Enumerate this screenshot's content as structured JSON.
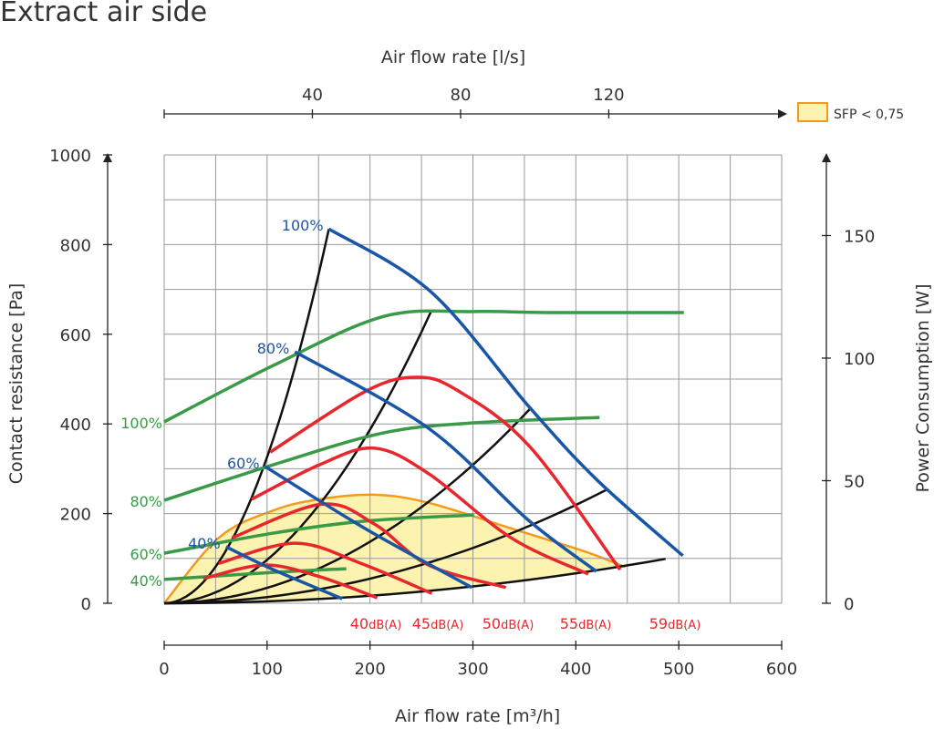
{
  "title": "Extract air side",
  "legend": {
    "label": "SFP < 0,75",
    "fill": "#fdf3b0",
    "stroke": "#f39a1e"
  },
  "chart_data": {
    "type": "line",
    "title": "Extract air side",
    "xlabel": "Air flow rate [m³/h]",
    "x2label": "Air flow rate [l/s]",
    "ylabel": "Contact resistance [Pa]",
    "y2label": "Power Consumption [W]",
    "xlim": [
      0,
      600
    ],
    "ylim": [
      0,
      1000
    ],
    "y2lim": [
      0,
      183
    ],
    "xticks": [
      0,
      100,
      200,
      300,
      400,
      500,
      600
    ],
    "yticks": [
      0,
      200,
      400,
      600,
      800,
      1000
    ],
    "y2ticks": [
      0,
      50,
      100,
      150
    ],
    "x2ticks": [
      40,
      80,
      120
    ],
    "grid": true,
    "fan_curves": [
      {
        "name": "100%",
        "color": "#1a56a8",
        "points": [
          [
            160,
            835
          ],
          [
            259,
            695
          ],
          [
            355,
            437
          ],
          [
            421,
            274
          ],
          [
            504,
            106
          ]
        ]
      },
      {
        "name": "80%",
        "color": "#1a56a8",
        "points": [
          [
            127,
            561
          ],
          [
            257,
            390
          ],
          [
            353,
            187
          ],
          [
            420,
            71
          ]
        ]
      },
      {
        "name": "60%",
        "color": "#1a56a8",
        "points": [
          [
            98,
            305
          ],
          [
            195,
            167
          ],
          [
            299,
            35
          ]
        ]
      },
      {
        "name": "40%",
        "color": "#1a56a8",
        "points": [
          [
            60,
            126
          ],
          [
            106,
            75
          ],
          [
            173,
            10
          ]
        ]
      }
    ],
    "power_curves": [
      {
        "name": "100%",
        "color": "#3a9a48",
        "points": [
          [
            0,
            74
          ],
          [
            106,
            97
          ],
          [
            213,
            117
          ],
          [
            301,
            119
          ],
          [
            372,
            118.6
          ],
          [
            505,
            118.6
          ]
        ]
      },
      {
        "name": "80%",
        "color": "#3a9a48",
        "points": [
          [
            0,
            42
          ],
          [
            106,
            56.5
          ],
          [
            213,
            69.5
          ],
          [
            301,
            73.6
          ],
          [
            423,
            75.8
          ]
        ]
      },
      {
        "name": "60%",
        "color": "#3a9a48",
        "points": [
          [
            0,
            20.4
          ],
          [
            106,
            28.6
          ],
          [
            195,
            33.5
          ],
          [
            301,
            36
          ]
        ]
      },
      {
        "name": "40%",
        "color": "#3a9a48",
        "points": [
          [
            0,
            9.7
          ],
          [
            106,
            12.6
          ],
          [
            177,
            14.1
          ]
        ]
      }
    ],
    "sound_curves": [
      {
        "name": "40dB(A)",
        "color": "#e8262d",
        "points": [
          [
            38,
            55
          ],
          [
            97,
            85
          ],
          [
            150,
            60
          ],
          [
            207,
            12
          ]
        ]
      },
      {
        "name": "45dB(A)",
        "color": "#e8262d",
        "points": [
          [
            53,
            89
          ],
          [
            127,
            134
          ],
          [
            190,
            90
          ],
          [
            260,
            22
          ]
        ]
      },
      {
        "name": "50dB(A)",
        "color": "#e8262d",
        "points": [
          [
            66,
            146
          ],
          [
            153,
            221
          ],
          [
            204,
            177
          ],
          [
            257,
            85
          ],
          [
            332,
            35
          ]
        ]
      },
      {
        "name": "55dB(A)",
        "color": "#e8262d",
        "points": [
          [
            85,
            232
          ],
          [
            151,
            309
          ],
          [
            204,
            346
          ],
          [
            257,
            289
          ],
          [
            337,
            146
          ],
          [
            412,
            65
          ]
        ]
      },
      {
        "name": "59dB(A)",
        "color": "#e8262d",
        "points": [
          [
            103,
            337
          ],
          [
            195,
            472
          ],
          [
            244,
            504
          ],
          [
            284,
            476
          ],
          [
            355,
            350
          ],
          [
            443,
            75
          ]
        ]
      }
    ],
    "system_curves_k": [
      0.0326,
      0.00968,
      0.00343,
      0.00137,
      0.000417
    ],
    "system_curves_qmax": [
      160,
      268,
      357,
      430,
      504
    ],
    "sfp_boundary": [
      [
        0,
        0
      ],
      [
        53,
        146
      ],
      [
        106,
        207
      ],
      [
        151,
        232
      ],
      [
        204,
        242
      ],
      [
        257,
        224
      ],
      [
        337,
        167
      ],
      [
        408,
        116
      ],
      [
        448,
        81
      ]
    ]
  }
}
